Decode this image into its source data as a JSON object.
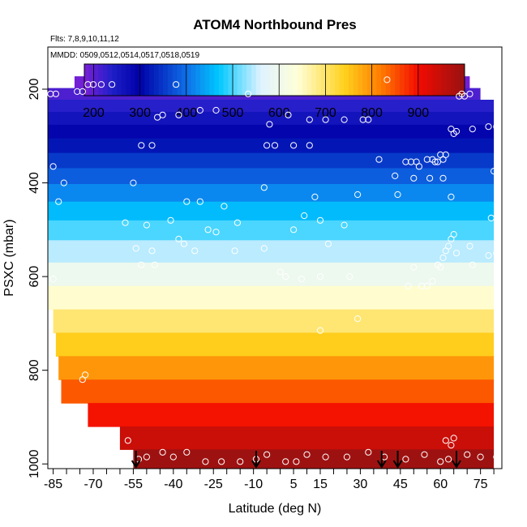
{
  "chart_data": {
    "type": "heatmap",
    "title": "ATOM4 Northbound Pres",
    "flights_label": "Flts: 7,8,9,10,11,12",
    "dates_label": "MMDD: 0509,0512,0514,0517,0518,0519",
    "xlabel": "Latitude (deg N)",
    "ylabel": "PSXC (mbar)",
    "xlim": [
      -87,
      83
    ],
    "ylim": [
      1010,
      110
    ],
    "y_inverted": true,
    "x_ticks": [
      -85,
      -70,
      -55,
      -40,
      -25,
      -10,
      5,
      15,
      30,
      45,
      60,
      75
    ],
    "x_tick_labels": [
      "-85",
      "-70",
      "-55",
      "-40",
      "-25",
      "-10",
      "5",
      "15",
      "30",
      "45",
      "60",
      "75"
    ],
    "x_minor_ticks": [
      -80,
      -75,
      -65,
      -60,
      -50,
      -45,
      -35,
      -30,
      -20,
      -15,
      -5,
      0,
      10,
      20,
      25,
      35,
      40,
      50,
      55,
      65,
      70,
      80
    ],
    "y_ticks": [
      200,
      400,
      600,
      800,
      1000
    ],
    "y_tick_labels": [
      "200",
      "400",
      "600",
      "800",
      "1000"
    ],
    "colorbar": {
      "min": 180,
      "max": 1000,
      "ticks": [
        200,
        300,
        400,
        500,
        600,
        700,
        800,
        900
      ],
      "tick_labels": [
        "200",
        "300",
        "400",
        "500",
        "600",
        "700",
        "800",
        "900"
      ],
      "stops": [
        {
          "v": 180,
          "c": "#7a1fd6"
        },
        {
          "v": 240,
          "c": "#1f1fc8"
        },
        {
          "v": 300,
          "c": "#0000a8"
        },
        {
          "v": 400,
          "c": "#0f6fe8"
        },
        {
          "v": 470,
          "c": "#00c8ff"
        },
        {
          "v": 560,
          "c": "#dff2ff"
        },
        {
          "v": 640,
          "c": "#ffffd8"
        },
        {
          "v": 740,
          "c": "#ffd21e"
        },
        {
          "v": 820,
          "c": "#ff7b00"
        },
        {
          "v": 900,
          "c": "#f30b00"
        },
        {
          "v": 1000,
          "c": "#971212"
        }
      ]
    },
    "bands": [
      {
        "p": 185,
        "xmin": -77,
        "xmax": 71
      },
      {
        "p": 210,
        "xmin": -87,
        "xmax": 75
      },
      {
        "p": 235,
        "xmin": -87,
        "xmax": 80
      },
      {
        "p": 262,
        "xmin": -87,
        "xmax": 80
      },
      {
        "p": 290,
        "xmin": -87,
        "xmax": 80
      },
      {
        "p": 320,
        "xmin": -87,
        "xmax": 80
      },
      {
        "p": 352,
        "xmin": -87,
        "xmax": 80
      },
      {
        "p": 385,
        "xmin": -87,
        "xmax": 80
      },
      {
        "p": 420,
        "xmin": -87,
        "xmax": 80
      },
      {
        "p": 460,
        "xmin": -87,
        "xmax": 80
      },
      {
        "p": 500,
        "xmin": -87,
        "xmax": 80
      },
      {
        "p": 545,
        "xmin": -87,
        "xmax": 80
      },
      {
        "p": 595,
        "xmin": -87,
        "xmax": 80
      },
      {
        "p": 645,
        "xmin": -87,
        "xmax": 80
      },
      {
        "p": 695,
        "xmin": -85,
        "xmax": 80
      },
      {
        "p": 745,
        "xmin": -84,
        "xmax": 80
      },
      {
        "p": 795,
        "xmin": -83,
        "xmax": 80
      },
      {
        "p": 845,
        "xmin": -82,
        "xmax": 80
      },
      {
        "p": 895,
        "xmin": -72,
        "xmax": 80
      },
      {
        "p": 945,
        "xmin": -60,
        "xmax": 80
      },
      {
        "p": 993,
        "xmin": -55,
        "xmax": 80
      }
    ],
    "points": [
      [
        -86,
        210
      ],
      [
        -84,
        210
      ],
      [
        -76,
        205
      ],
      [
        -74,
        205
      ],
      [
        -72,
        190
      ],
      [
        -70,
        190
      ],
      [
        -67,
        190
      ],
      [
        -63,
        190
      ],
      [
        -39,
        190
      ],
      [
        -12,
        210
      ],
      [
        -46,
        260
      ],
      [
        -44,
        255
      ],
      [
        -38,
        255
      ],
      [
        -30,
        245
      ],
      [
        -24,
        245
      ],
      [
        -4,
        275
      ],
      [
        3,
        255
      ],
      [
        11,
        265
      ],
      [
        17,
        265
      ],
      [
        24,
        265
      ],
      [
        31,
        265
      ],
      [
        33,
        265
      ],
      [
        40,
        180
      ],
      [
        -52,
        320
      ],
      [
        -48,
        320
      ],
      [
        -5,
        320
      ],
      [
        -2,
        320
      ],
      [
        5,
        320
      ],
      [
        11,
        320
      ],
      [
        37,
        350
      ],
      [
        47,
        355
      ],
      [
        49,
        355
      ],
      [
        51,
        355
      ],
      [
        52,
        365
      ],
      [
        55,
        350
      ],
      [
        57,
        350
      ],
      [
        58,
        355
      ],
      [
        59,
        355
      ],
      [
        60,
        340
      ],
      [
        61,
        350
      ],
      [
        62,
        340
      ],
      [
        64,
        285
      ],
      [
        65,
        295
      ],
      [
        66,
        290
      ],
      [
        67,
        215
      ],
      [
        68,
        210
      ],
      [
        69,
        215
      ],
      [
        71,
        210
      ],
      [
        72,
        285
      ],
      [
        78,
        280
      ],
      [
        81,
        280
      ],
      [
        80,
        375
      ],
      [
        -85,
        365
      ],
      [
        -83,
        440
      ],
      [
        -81,
        400
      ],
      [
        -55,
        400
      ],
      [
        -35,
        440
      ],
      [
        -30,
        440
      ],
      [
        -21,
        450
      ],
      [
        -6,
        410
      ],
      [
        13,
        430
      ],
      [
        29,
        425
      ],
      [
        43,
        385
      ],
      [
        44,
        425
      ],
      [
        50,
        390
      ],
      [
        56,
        390
      ],
      [
        61,
        390
      ],
      [
        64,
        430
      ],
      [
        -50,
        490
      ],
      [
        -41,
        480
      ],
      [
        -38,
        520
      ],
      [
        -36,
        530
      ],
      [
        -27,
        500
      ],
      [
        -24,
        505
      ],
      [
        -16,
        485
      ],
      [
        -6,
        540
      ],
      [
        5,
        500
      ],
      [
        9,
        470
      ],
      [
        15,
        480
      ],
      [
        18,
        530
      ],
      [
        24,
        490
      ],
      [
        -58,
        485
      ],
      [
        -54,
        540
      ],
      [
        -52,
        575
      ],
      [
        -48,
        545
      ],
      [
        -47,
        575
      ],
      [
        -32,
        545
      ],
      [
        -17,
        545
      ],
      [
        0,
        590
      ],
      [
        2,
        600
      ],
      [
        8,
        605
      ],
      [
        15,
        600
      ],
      [
        26,
        600
      ],
      [
        48,
        620
      ],
      [
        50,
        580
      ],
      [
        53,
        620
      ],
      [
        55,
        620
      ],
      [
        57,
        610
      ],
      [
        59,
        575
      ],
      [
        60,
        580
      ],
      [
        61,
        560
      ],
      [
        62,
        545
      ],
      [
        63,
        535
      ],
      [
        64,
        520
      ],
      [
        65,
        510
      ],
      [
        66,
        550
      ],
      [
        71,
        535
      ],
      [
        72,
        575
      ],
      [
        78,
        555
      ],
      [
        79,
        475
      ],
      [
        81,
        550
      ],
      [
        -85,
        605
      ],
      [
        -73,
        810
      ],
      [
        -74,
        820
      ],
      [
        -57,
        950
      ],
      [
        -53,
        990
      ],
      [
        -50,
        985
      ],
      [
        -44,
        975
      ],
      [
        -40,
        985
      ],
      [
        -35,
        975
      ],
      [
        -28,
        995
      ],
      [
        -22,
        995
      ],
      [
        -15,
        995
      ],
      [
        -9,
        990
      ],
      [
        -5,
        980
      ],
      [
        2,
        995
      ],
      [
        6,
        995
      ],
      [
        10,
        980
      ],
      [
        15,
        715
      ],
      [
        17,
        985
      ],
      [
        25,
        985
      ],
      [
        29,
        690
      ],
      [
        33,
        975
      ],
      [
        39,
        985
      ],
      [
        47,
        990
      ],
      [
        54,
        980
      ],
      [
        60,
        995
      ],
      [
        62,
        950
      ],
      [
        63,
        990
      ],
      [
        64,
        960
      ],
      [
        65,
        945
      ],
      [
        70,
        980
      ],
      [
        75,
        985
      ],
      [
        81,
        985
      ]
    ],
    "arrows": [
      -54,
      -9,
      38,
      44,
      66
    ]
  },
  "colors": {
    "axis": "#000000",
    "marker_outline": "#ffffff",
    "arrow": "#000000"
  }
}
